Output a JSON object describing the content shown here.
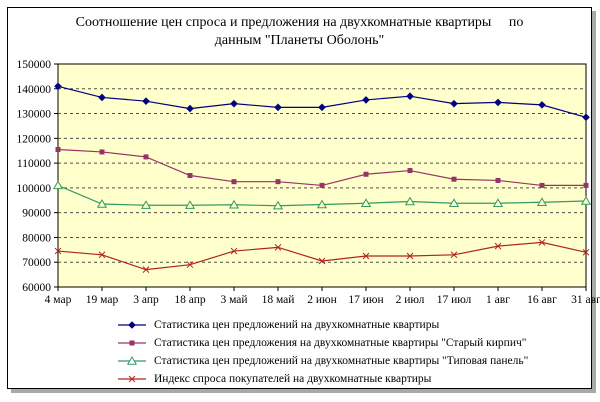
{
  "title": {
    "line1": "Соотношение цен спроса и предложения на двухкомнатные квартиры     по",
    "line2": "данным \"Планеты Оболонь\""
  },
  "chart_data": {
    "type": "line",
    "title": "Соотношение цен спроса и предложения на двухкомнатные квартиры по данным \"Планеты Оболонь\"",
    "categories": [
      "4 мар",
      "19 мар",
      "3 апр",
      "18 апр",
      "3 май",
      "18 май",
      "2 июн",
      "17 июн",
      "2 июл",
      "17 июл",
      "1 авг",
      "16 авг",
      "31 авг"
    ],
    "series": [
      {
        "name": "Статистика цен предложений на двухкомнатные квартиры",
        "color": "#000080",
        "marker": "diamond",
        "values": [
          141000,
          136500,
          135000,
          132000,
          134000,
          132500,
          132500,
          135500,
          137000,
          134000,
          134500,
          133500,
          128500
        ]
      },
      {
        "name": "Статистика цен предложения на двухкомнатные квартиры \"Старый кирпич\"",
        "color": "#993366",
        "marker": "square",
        "values": [
          115500,
          114500,
          112500,
          105000,
          102500,
          102500,
          101000,
          105500,
          107000,
          103500,
          103000,
          101000,
          101000
        ]
      },
      {
        "name": "Статистика цен предложений на двухкомнатные квартиры \"Типовая панель\"",
        "color": "#339966",
        "marker": "triangle",
        "values": [
          101000,
          93500,
          93000,
          93000,
          93200,
          92800,
          93300,
          93800,
          94500,
          93800,
          93800,
          94200,
          94700
        ]
      },
      {
        "name": "Индекс спроса покупателей на двухкомнатные квартиры",
        "color": "#B22222",
        "marker": "x",
        "values": [
          74500,
          73000,
          67000,
          69000,
          74500,
          76000,
          70500,
          72500,
          72500,
          73000,
          76500,
          78000,
          74000
        ]
      }
    ],
    "ylim": [
      60000,
      150000
    ],
    "ytick_step": 10000,
    "grid": "horizontal dashed",
    "gridline_color": "#4d4d4d",
    "plot_background": "#FFFFCC",
    "legend_position": "bottom-left"
  }
}
